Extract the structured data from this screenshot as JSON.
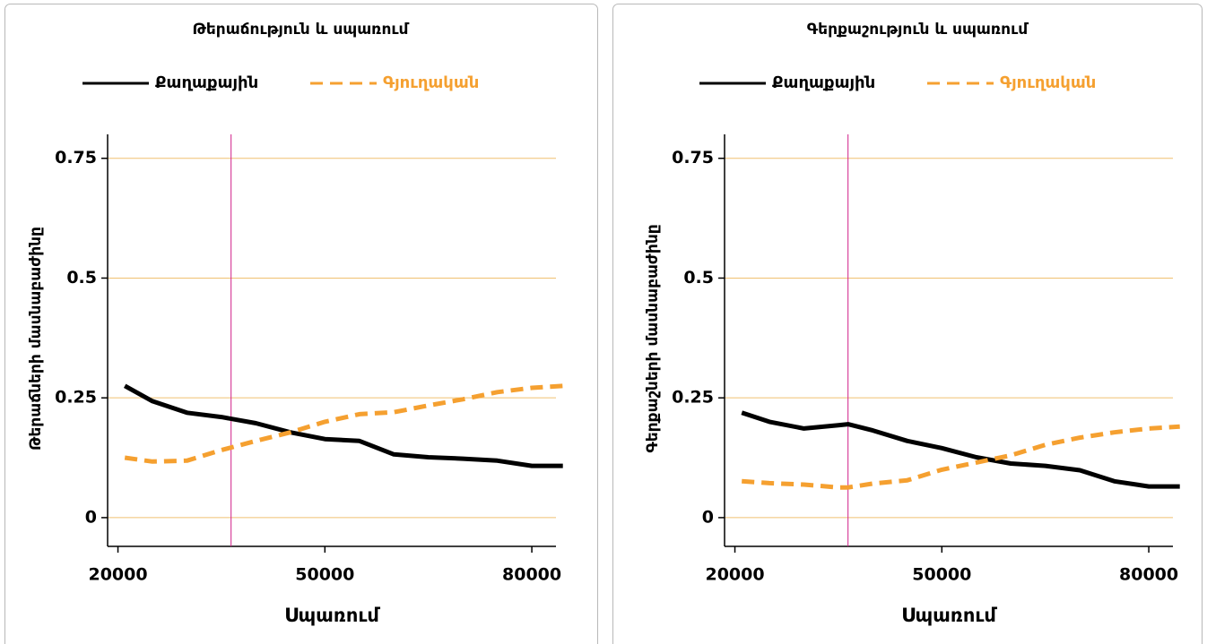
{
  "chart_data": [
    {
      "type": "line",
      "title": "Թերաճություն և սպառում",
      "x_label": "Սպառում",
      "y_label": "Թերաճների մասնաբաժինը",
      "x": [
        21000,
        25000,
        30000,
        35000,
        40000,
        45000,
        50000,
        55000,
        60000,
        65000,
        70000,
        75000,
        80000,
        84500
      ],
      "series": [
        {
          "name": "Քաղաքային",
          "color": "#000000",
          "dash": false,
          "values": [
            0.275,
            0.243,
            0.219,
            0.21,
            0.197,
            0.178,
            0.164,
            0.16,
            0.132,
            0.126,
            0.123,
            0.119,
            0.108,
            0.108
          ]
        },
        {
          "name": "Գյուղական",
          "color": "#f5a030",
          "dash": true,
          "values": [
            0.125,
            0.117,
            0.119,
            0.141,
            0.16,
            0.178,
            0.2,
            0.216,
            0.22,
            0.234,
            0.247,
            0.262,
            0.271,
            0.275
          ]
        }
      ],
      "vline": 36400,
      "vline_color": "#d0208a",
      "grid_color": "#f0c070",
      "xlim": [
        18500,
        83500
      ],
      "xticks": [
        20000,
        50000,
        80000
      ],
      "ylim": [
        -0.06,
        0.8
      ],
      "yticks": [
        0,
        0.25,
        0.5,
        0.75
      ],
      "grid": true
    },
    {
      "type": "line",
      "title": "Գերքաշություն և սպառում",
      "x_label": "Սպառում",
      "y_label": "Գերքաշների մասնաբաժինը",
      "x": [
        21000,
        25000,
        30000,
        35000,
        36400,
        40000,
        45000,
        50000,
        55000,
        60000,
        65000,
        70000,
        75000,
        80000,
        84500
      ],
      "series": [
        {
          "name": "Քաղաքային",
          "color": "#000000",
          "dash": false,
          "values": [
            0.219,
            0.2,
            0.186,
            0.193,
            0.195,
            0.182,
            0.16,
            0.145,
            0.126,
            0.113,
            0.108,
            0.099,
            0.076,
            0.065,
            0.065
          ]
        },
        {
          "name": "Գյուղական",
          "color": "#f5a030",
          "dash": true,
          "values": [
            0.076,
            0.072,
            0.069,
            0.063,
            0.063,
            0.071,
            0.078,
            0.1,
            0.115,
            0.13,
            0.152,
            0.167,
            0.178,
            0.186,
            0.19
          ]
        }
      ],
      "vline": 36400,
      "vline_color": "#d0208a",
      "grid_color": "#f0c070",
      "xlim": [
        18500,
        83500
      ],
      "xticks": [
        20000,
        50000,
        80000
      ],
      "ylim": [
        -0.06,
        0.8
      ],
      "yticks": [
        0,
        0.25,
        0.5,
        0.75
      ],
      "grid": true
    }
  ]
}
